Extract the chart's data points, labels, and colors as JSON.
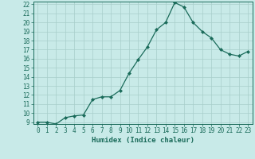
{
  "x": [
    0,
    1,
    2,
    3,
    4,
    5,
    6,
    7,
    8,
    9,
    10,
    11,
    12,
    13,
    14,
    15,
    16,
    17,
    18,
    19,
    20,
    21,
    22,
    23
  ],
  "y": [
    9,
    9,
    8.8,
    9.5,
    9.7,
    9.8,
    11.5,
    11.8,
    11.8,
    12.5,
    14.4,
    15.9,
    17.3,
    19.2,
    20.0,
    22.2,
    21.7,
    20.0,
    19.0,
    18.3,
    17.0,
    16.5,
    16.3,
    16.8
  ],
  "xlabel": "Humidex (Indice chaleur)",
  "ylim": [
    9,
    22
  ],
  "xlim": [
    -0.5,
    23.5
  ],
  "yticks": [
    9,
    10,
    11,
    12,
    13,
    14,
    15,
    16,
    17,
    18,
    19,
    20,
    21,
    22
  ],
  "xticks": [
    0,
    1,
    2,
    3,
    4,
    5,
    6,
    7,
    8,
    9,
    10,
    11,
    12,
    13,
    14,
    15,
    16,
    17,
    18,
    19,
    20,
    21,
    22,
    23
  ],
  "line_color": "#1a6b5a",
  "marker_color": "#1a6b5a",
  "bg_color": "#c8eae8",
  "grid_color": "#a8ceca",
  "label_fontsize": 6.5,
  "tick_fontsize": 5.5
}
